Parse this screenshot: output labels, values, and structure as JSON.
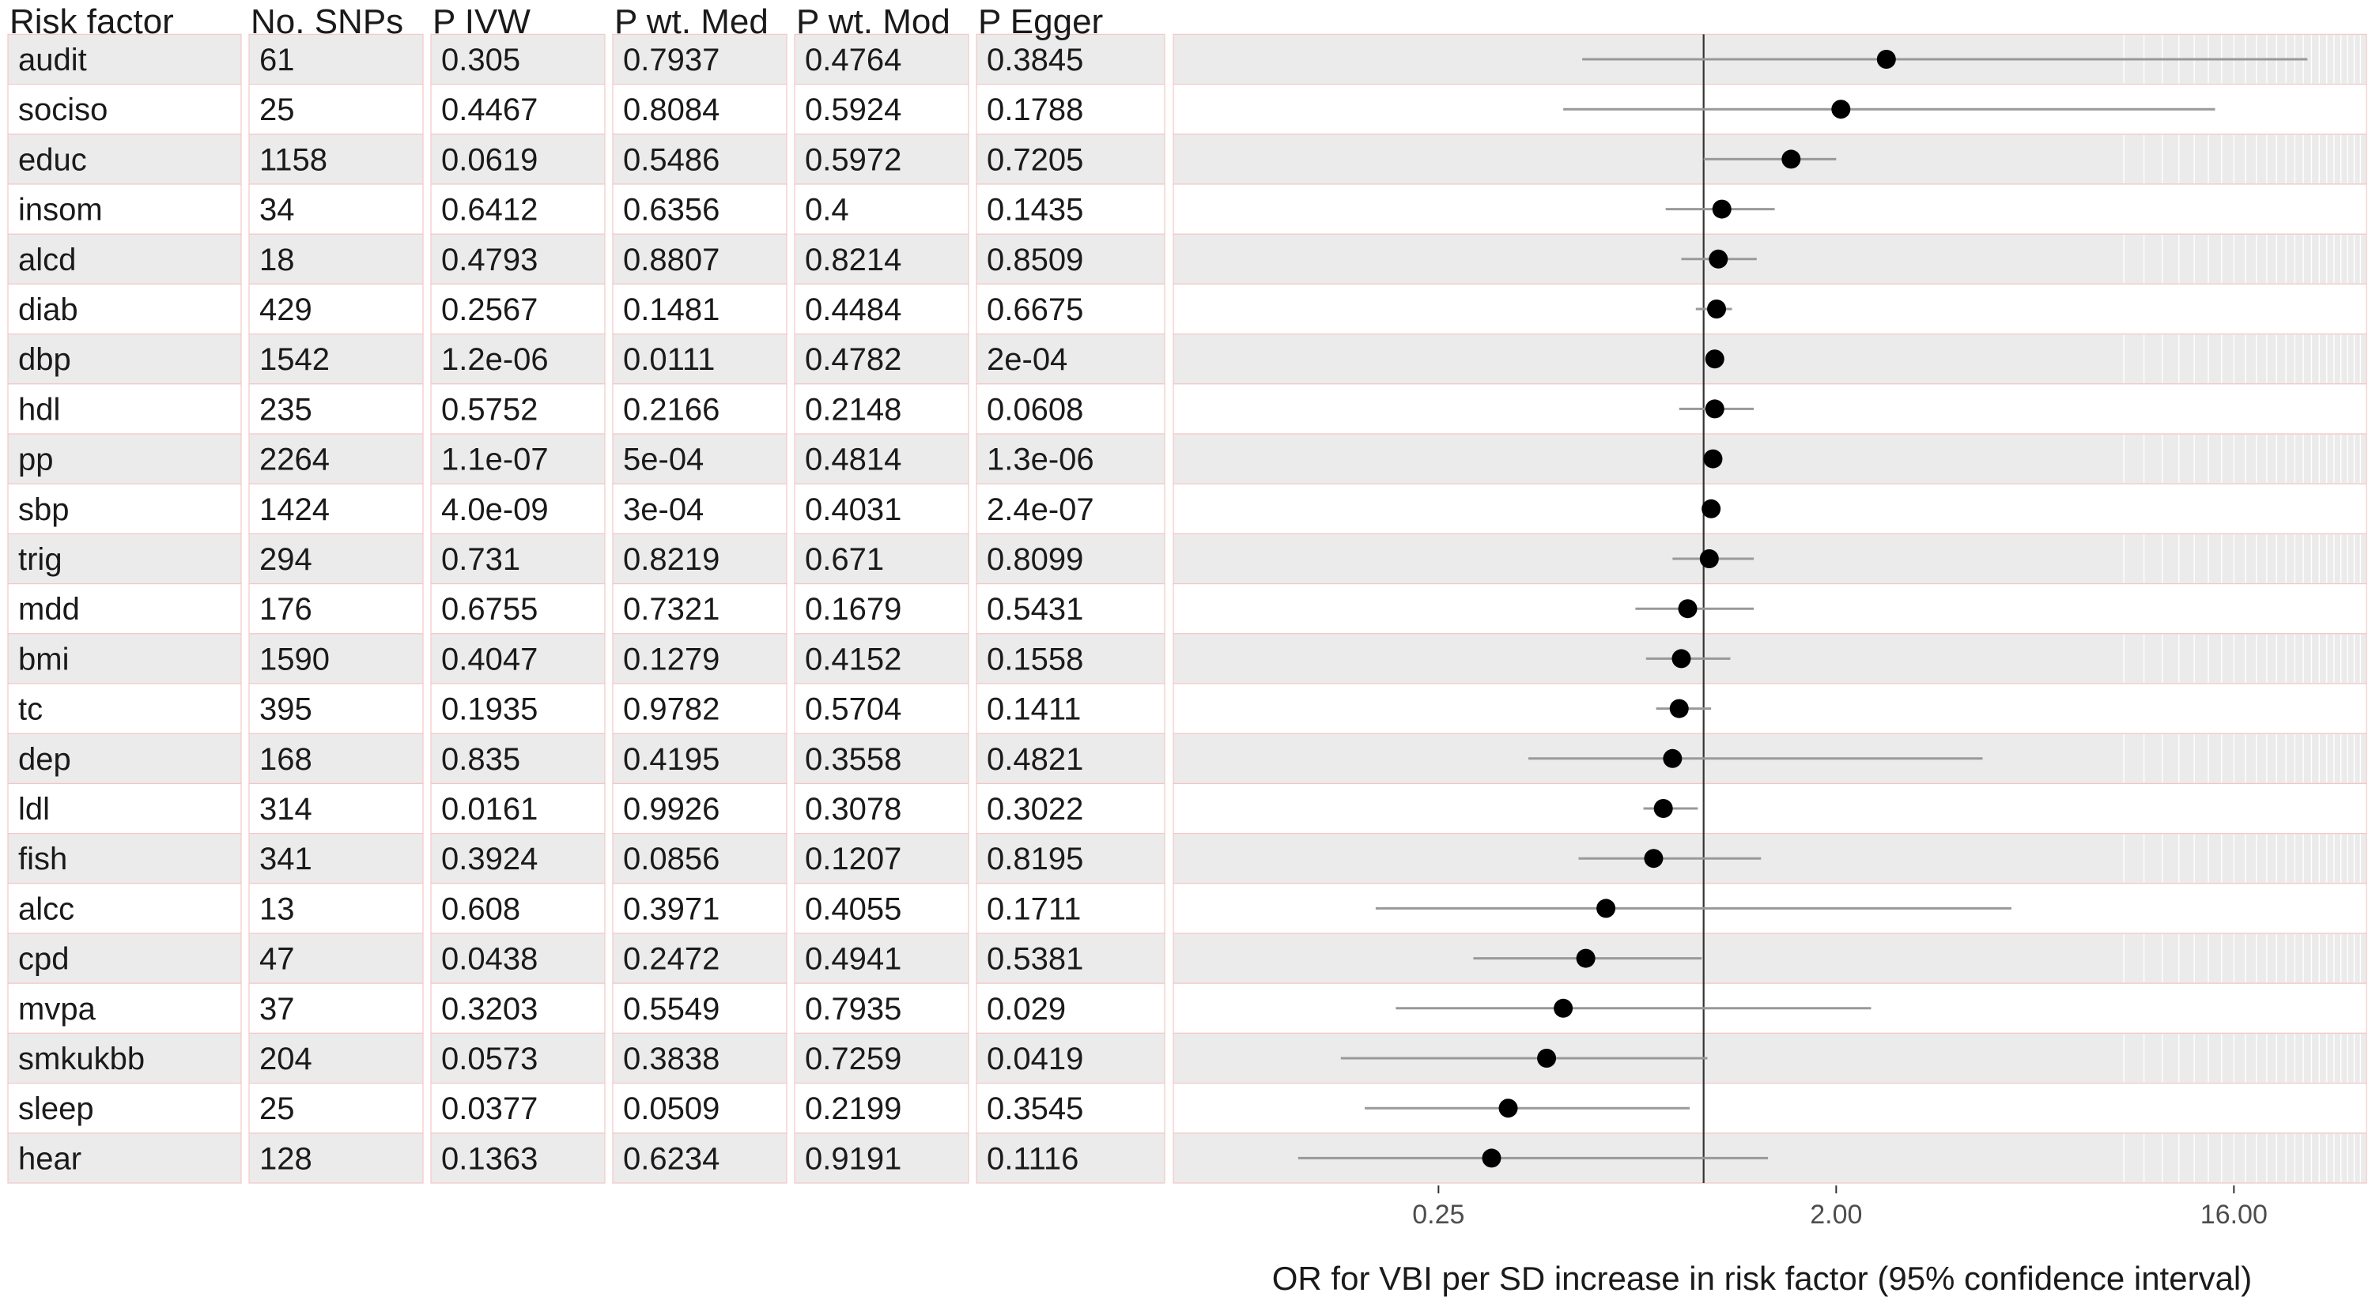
{
  "chart_data": {
    "type": "forest",
    "columns": [
      "Risk factor",
      "No. SNPs",
      "P IVW",
      "P wt. Med",
      "P wt. Mod",
      "P Egger"
    ],
    "xlabel": "OR for VBI per SD increase in risk factor (95% confidence interval)",
    "x_scale": "log2",
    "xlim": [
      0.0625,
      32
    ],
    "xticks": [
      "0.25",
      "2.00",
      "16.00"
    ],
    "xtick_values": [
      0.25,
      2,
      16
    ],
    "reference_line": 1,
    "rows": [
      {
        "factor": "audit",
        "snps": "61",
        "p_ivw": "0.305",
        "p_med": "0.7937",
        "p_mod": "0.4764",
        "p_egger": "0.3845",
        "or": 2.6,
        "lo": 0.53,
        "hi": 23.5
      },
      {
        "factor": "sociso",
        "snps": "25",
        "p_ivw": "0.4467",
        "p_med": "0.8084",
        "p_mod": "0.5924",
        "p_egger": "0.1788",
        "or": 2.05,
        "lo": 0.48,
        "hi": 14.5
      },
      {
        "factor": "educ",
        "snps": "1158",
        "p_ivw": "0.0619",
        "p_med": "0.5486",
        "p_mod": "0.5972",
        "p_egger": "0.7205",
        "or": 1.58,
        "lo": 1.0,
        "hi": 2.0
      },
      {
        "factor": "insom",
        "snps": "34",
        "p_ivw": "0.6412",
        "p_med": "0.6356",
        "p_mod": "0.4",
        "p_egger": "0.1435",
        "or": 1.1,
        "lo": 0.82,
        "hi": 1.45
      },
      {
        "factor": "alcd",
        "snps": "18",
        "p_ivw": "0.4793",
        "p_med": "0.8807",
        "p_mod": "0.8214",
        "p_egger": "0.8509",
        "or": 1.08,
        "lo": 0.89,
        "hi": 1.32
      },
      {
        "factor": "diab",
        "snps": "429",
        "p_ivw": "0.2567",
        "p_med": "0.1481",
        "p_mod": "0.4484",
        "p_egger": "0.6675",
        "or": 1.07,
        "lo": 0.96,
        "hi": 1.16
      },
      {
        "factor": "dbp",
        "snps": "1542",
        "p_ivw": "1.2e-06",
        "p_med": "0.0111",
        "p_mod": "0.4782",
        "p_egger": "2e-04",
        "or": 1.06,
        "lo": 1.03,
        "hi": 1.09
      },
      {
        "factor": "hdl",
        "snps": "235",
        "p_ivw": "0.5752",
        "p_med": "0.2166",
        "p_mod": "0.2148",
        "p_egger": "0.0608",
        "or": 1.06,
        "lo": 0.88,
        "hi": 1.3
      },
      {
        "factor": "pp",
        "snps": "2264",
        "p_ivw": "1.1e-07",
        "p_med": "5e-04",
        "p_mod": "0.4814",
        "p_egger": "1.3e-06",
        "or": 1.05,
        "lo": 1.02,
        "hi": 1.08
      },
      {
        "factor": "sbp",
        "snps": "1424",
        "p_ivw": "4.0e-09",
        "p_med": "3e-04",
        "p_mod": "0.4031",
        "p_egger": "2.4e-07",
        "or": 1.04,
        "lo": 1.02,
        "hi": 1.06
      },
      {
        "factor": "trig",
        "snps": "294",
        "p_ivw": "0.731",
        "p_med": "0.8219",
        "p_mod": "0.671",
        "p_egger": "0.8099",
        "or": 1.03,
        "lo": 0.85,
        "hi": 1.3
      },
      {
        "factor": "mdd",
        "snps": "176",
        "p_ivw": "0.6755",
        "p_med": "0.7321",
        "p_mod": "0.1679",
        "p_egger": "0.5431",
        "or": 0.92,
        "lo": 0.7,
        "hi": 1.3
      },
      {
        "factor": "bmi",
        "snps": "1590",
        "p_ivw": "0.4047",
        "p_med": "0.1279",
        "p_mod": "0.4152",
        "p_egger": "0.1558",
        "or": 0.89,
        "lo": 0.74,
        "hi": 1.15
      },
      {
        "factor": "tc",
        "snps": "395",
        "p_ivw": "0.1935",
        "p_med": "0.9782",
        "p_mod": "0.5704",
        "p_egger": "0.1411",
        "or": 0.88,
        "lo": 0.78,
        "hi": 1.04
      },
      {
        "factor": "dep",
        "snps": "168",
        "p_ivw": "0.835",
        "p_med": "0.4195",
        "p_mod": "0.3558",
        "p_egger": "0.4821",
        "or": 0.85,
        "lo": 0.4,
        "hi": 4.3
      },
      {
        "factor": "ldl",
        "snps": "314",
        "p_ivw": "0.0161",
        "p_med": "0.9926",
        "p_mod": "0.3078",
        "p_egger": "0.3022",
        "or": 0.81,
        "lo": 0.73,
        "hi": 0.97
      },
      {
        "factor": "fish",
        "snps": "341",
        "p_ivw": "0.3924",
        "p_med": "0.0856",
        "p_mod": "0.1207",
        "p_egger": "0.8195",
        "or": 0.77,
        "lo": 0.52,
        "hi": 1.35
      },
      {
        "factor": "alcc",
        "snps": "13",
        "p_ivw": "0.608",
        "p_med": "0.3971",
        "p_mod": "0.4055",
        "p_egger": "0.1711",
        "or": 0.6,
        "lo": 0.18,
        "hi": 5.0
      },
      {
        "factor": "cpd",
        "snps": "47",
        "p_ivw": "0.0438",
        "p_med": "0.2472",
        "p_mod": "0.4941",
        "p_egger": "0.5381",
        "or": 0.54,
        "lo": 0.3,
        "hi": 0.99
      },
      {
        "factor": "mvpa",
        "snps": "37",
        "p_ivw": "0.3203",
        "p_med": "0.5549",
        "p_mod": "0.7935",
        "p_egger": "0.029",
        "or": 0.48,
        "lo": 0.2,
        "hi": 2.4
      },
      {
        "factor": "smkukbb",
        "snps": "204",
        "p_ivw": "0.0573",
        "p_med": "0.3838",
        "p_mod": "0.7259",
        "p_egger": "0.0419",
        "or": 0.44,
        "lo": 0.15,
        "hi": 1.02
      },
      {
        "factor": "sleep",
        "snps": "25",
        "p_ivw": "0.0377",
        "p_med": "0.0509",
        "p_mod": "0.2199",
        "p_egger": "0.3545",
        "or": 0.36,
        "lo": 0.17,
        "hi": 0.93
      },
      {
        "factor": "hear",
        "snps": "128",
        "p_ivw": "0.1363",
        "p_med": "0.6234",
        "p_mod": "0.9191",
        "p_egger": "0.1116",
        "or": 0.33,
        "lo": 0.12,
        "hi": 1.4
      }
    ]
  }
}
